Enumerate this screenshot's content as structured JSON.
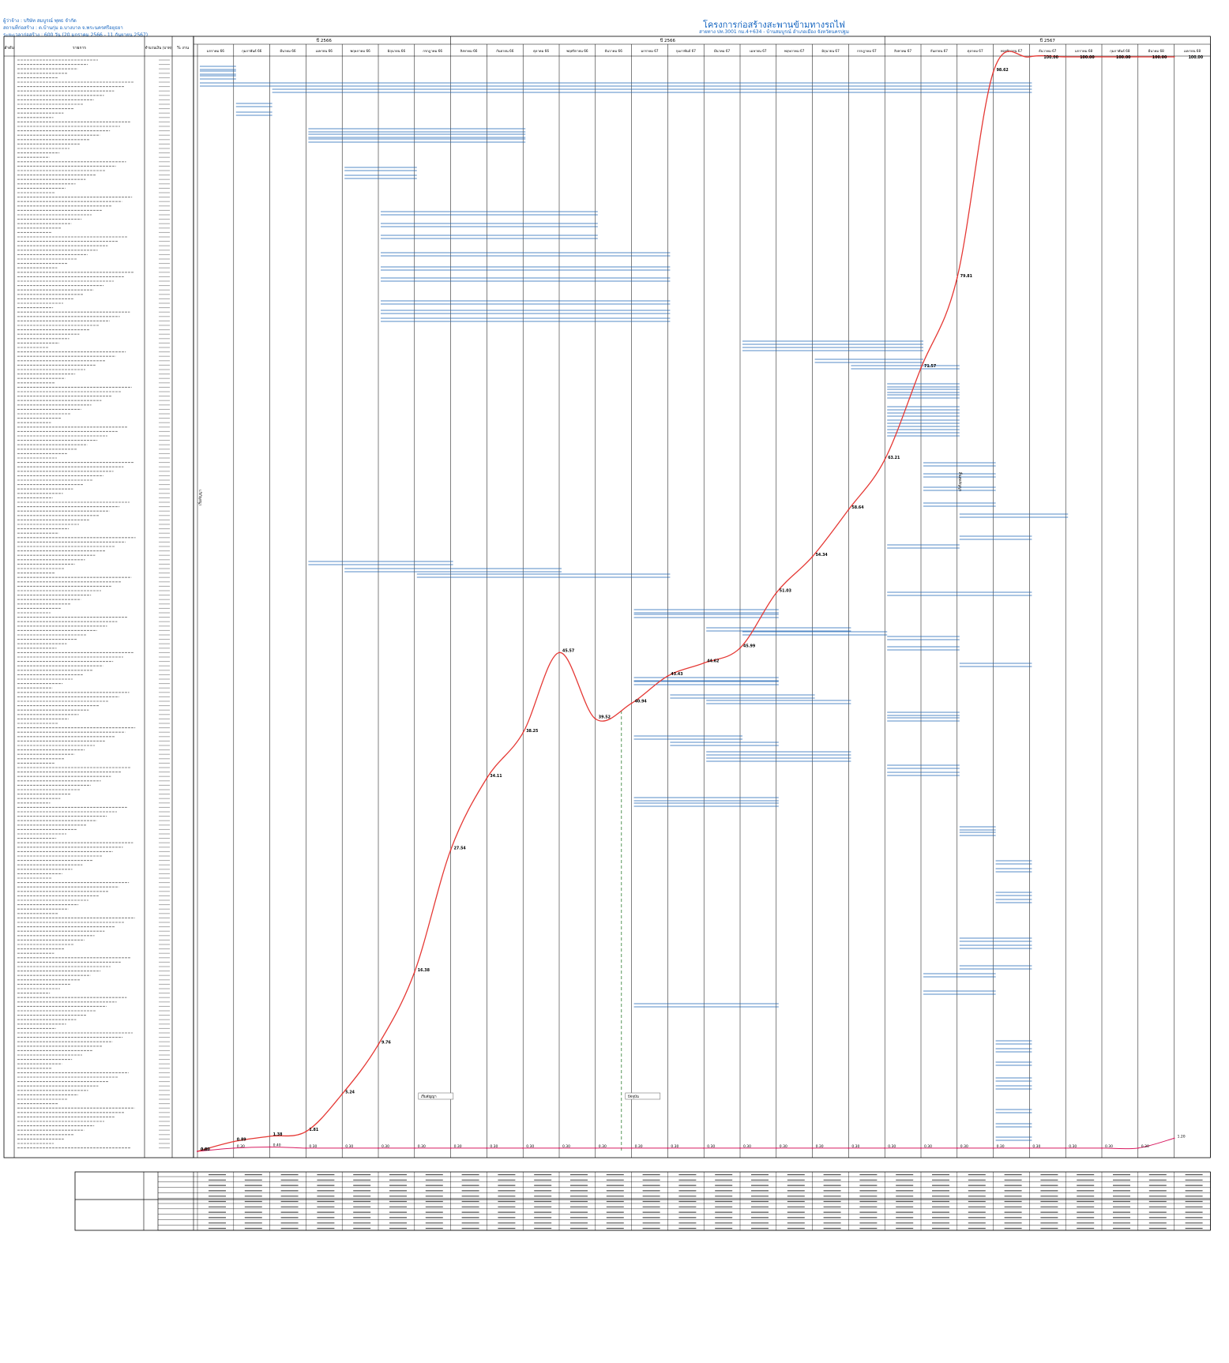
{
  "header": {
    "owner": "ผู้ว่าจ้าง : บริษัท สมบูรณ์ พุทธ จำกัด",
    "location": "สถานที่ก่อสร้าง : ต.บ้านกุ่ม อ.บางบาล จ.พระนครศรีอยุธยา",
    "period": "ระยะเวลาก่อสร้าง : 600 วัน (20 มกราคม 2566 - 11 กันยายน 2567)",
    "title": "โครงการก่อสร้างสะพานข้ามทางรถไฟ",
    "subtitle": "สายทาง ปท.3001 กม.4+634 - บ้านสมบูรณ์ อำเภอเมือง จังหวัดนครปฐม"
  },
  "table_header": {
    "no": "ลำดับ",
    "item": "รายการ",
    "amount": "จำนวนเงิน (บาท)",
    "weight": "% งาน"
  },
  "years": [
    "ปี 2566",
    "ปี 2566",
    "ปี 2567"
  ],
  "months": [
    "มกราคม 66",
    "กุมภาพันธ์ 66",
    "มีนาคม 66",
    "เมษายน 66",
    "พฤษภาคม 66",
    "มิถุนายน 66",
    "กรกฎาคม 66",
    "สิงหาคม 66",
    "กันยายน 66",
    "ตุลาคม 66",
    "พฤศจิกายน 66",
    "ธันวาคม 66",
    "มกราคม 67",
    "กุมภาพันธ์ 67",
    "มีนาคม 67",
    "เมษายน 67",
    "พฤษภาคม 67",
    "มิถุนายน 67",
    "กรกฎาคม 67",
    "สิงหาคม 67",
    "กันยายน 67",
    "ตุลาคม 67",
    "พฤศจิกายน 67",
    "ธันวาคม 67",
    "มกราคม 68",
    "กุมภาพันธ์ 68",
    "มีนาคม 68",
    "เมษายน 68"
  ],
  "markers": {
    "contract_start": "เริ่มสัญญา",
    "current": "ปัจจุบัน",
    "contract_end": "สิ้นสุดสัญญา"
  },
  "colors": {
    "plan": "#e53935",
    "actual": "#d81b60",
    "bars": "#1e64b4",
    "header_text": "#1565c0"
  },
  "chart_data": {
    "type": "line",
    "x": [
      "มกราคม 66",
      "กุมภาพันธ์ 66",
      "มีนาคม 66",
      "เมษายน 66",
      "พฤษภาคม 66",
      "มิถุนายน 66",
      "กรกฎาคม 66",
      "สิงหาคม 66",
      "กันยายน 66",
      "ตุลาคม 66",
      "พฤศจิกายน 66",
      "ธันวาคม 66",
      "มกราคม 67",
      "กุมภาพันธ์ 67",
      "มีนาคม 67",
      "เมษายน 67",
      "พฤษภาคม 67",
      "มิถุนายน 67",
      "กรกฎาคม 67",
      "สิงหาคม 67",
      "กันยายน 67",
      "ตุลาคม 67",
      "พฤศจิกายน 67",
      "ธันวาคม 67",
      "มกราคม 68",
      "กุมภาพันธ์ 68",
      "มีนาคม 68",
      "เมษายน 68"
    ],
    "ylim": [
      0,
      100
    ],
    "series": [
      {
        "values": [
          0.0,
          0.89,
          1.38,
          1.81,
          5.24,
          9.76,
          16.38,
          27.54,
          34.11,
          38.25,
          45.57,
          39.52,
          40.94,
          43.43,
          44.62,
          45.99,
          51.03,
          54.34,
          58.64,
          63.21,
          71.57,
          79.81,
          98.62,
          100.0,
          100.0,
          100.0,
          100.0,
          100.0
        ]
      },
      {
        "values": [
          0.0,
          0.3,
          0.4,
          0.3,
          0.3,
          0.3,
          0.3,
          0.3,
          0.3,
          0.3,
          0.3,
          0.3,
          0.3,
          0.3,
          0.3,
          0.3,
          0.3,
          0.3,
          0.3,
          0.3,
          0.3,
          0.3,
          0.3,
          0.3,
          0.3,
          0.3,
          0.3,
          1.2
        ]
      }
    ]
  }
}
